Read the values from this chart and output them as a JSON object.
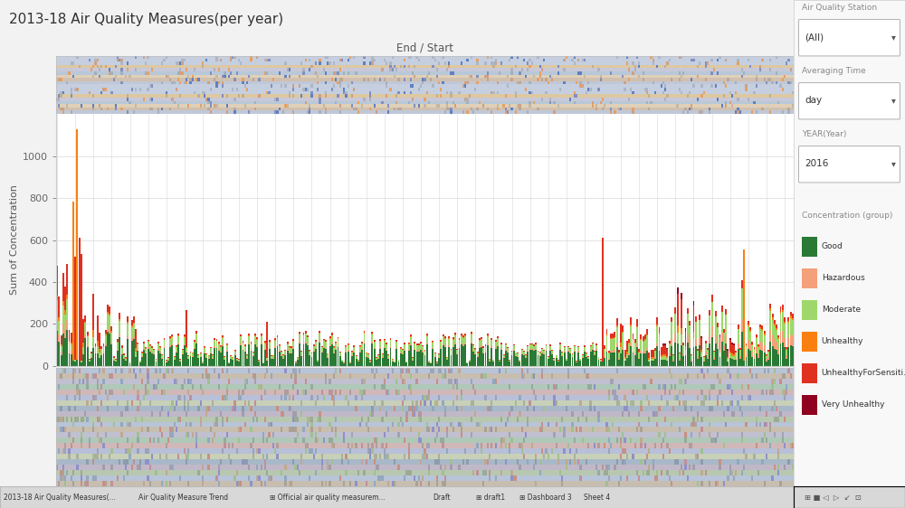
{
  "title": "2013-18 Air Quality Measures(per year)",
  "x_axis_label": "End / Start",
  "y_label": "Sum of Concentration",
  "ylim": [
    0,
    1200
  ],
  "yticks": [
    0,
    200,
    400,
    600,
    800,
    1000
  ],
  "colors": {
    "Good": "#2a7a35",
    "Hazardous": "#f4a07a",
    "Moderate": "#9ed86a",
    "Unhealthy": "#f98010",
    "UnhealthyForSensiti...": "#e03020",
    "Very Unhealthy": "#900020"
  },
  "legend_labels": [
    "Good",
    "Hazardous",
    "Moderate",
    "Unhealthy",
    "UnhealthyForSensiti...",
    "Very Unhealthy"
  ],
  "right_panel_bg": "#f8f8f8",
  "main_bg": "#ffffff",
  "outer_bg": "#f2f2f2",
  "n_bars": 365,
  "seed": 42,
  "filter_items": [
    {
      "label": "Air Quality Station",
      "value": "(All)"
    },
    {
      "label": "Averaging Time",
      "value": "day"
    },
    {
      "label": "YEAR(Year)",
      "value": "2016"
    }
  ],
  "top_stripe_colors": [
    "#c8d0e0",
    "#e8c890",
    "#d0d8c8",
    "#c0c8d8",
    "#e0d0c0",
    "#b8c8d8",
    "#d8c0b8"
  ],
  "bot_stripe_colors": [
    "#b8c8d8",
    "#d0c0b0",
    "#c8c8d8",
    "#b8d0c0",
    "#d8b8c0",
    "#c0c8e0",
    "#d0d8b8",
    "#a8b8c8"
  ],
  "tab_labels": [
    "2013-18 Air Quality Measures(...",
    "Air Quality Measure Trend",
    "⊞ Official air quality measurem...",
    "Draft",
    "⊞ draft1",
    "⊞ Dashboard 3",
    "Sheet 4"
  ],
  "tab_x": [
    0.005,
    0.175,
    0.34,
    0.545,
    0.6,
    0.655,
    0.735
  ]
}
